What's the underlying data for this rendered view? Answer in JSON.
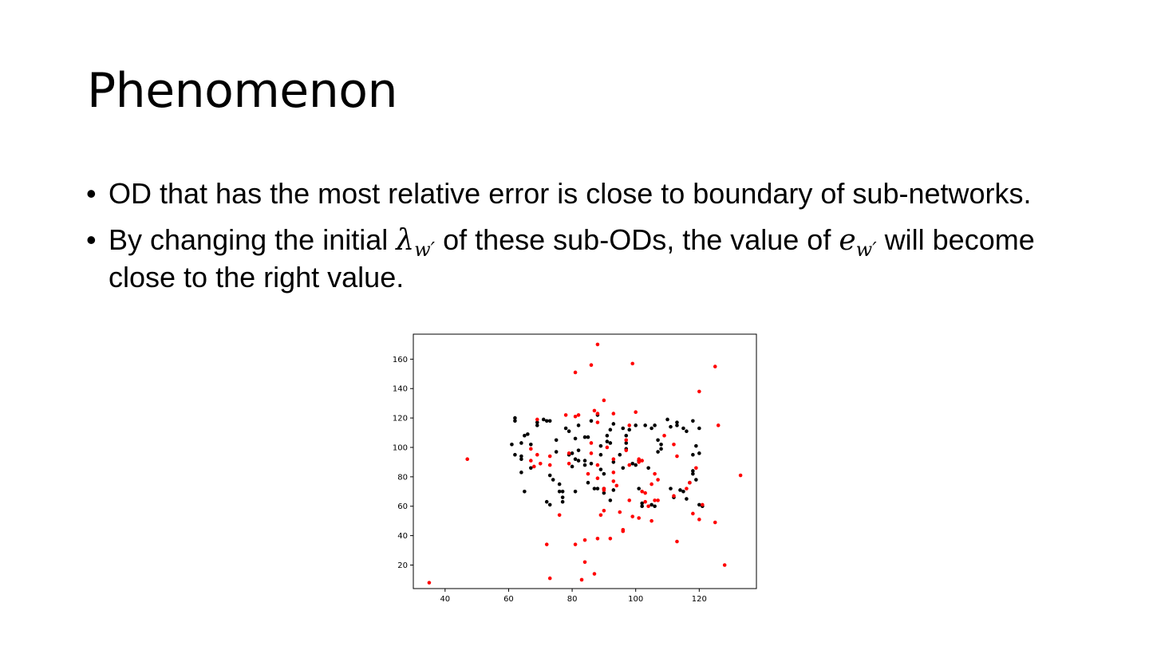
{
  "slide": {
    "title": "Phenomenon",
    "bullet_marker": "•",
    "bullets": [
      {
        "text": "OD that has the most relative error is close to boundary of sub-networks."
      },
      {
        "pre": "By changing the initial ",
        "math1_base": "λ",
        "math1_sub": "w′",
        "mid": " of these sub-ODs, the value of ",
        "math2_base": "e",
        "math2_sub": "w′",
        "post": " will become close to the right value."
      }
    ]
  },
  "chart_data": {
    "type": "scatter",
    "title": "",
    "xlabel": "",
    "ylabel": "",
    "xlim": [
      30,
      138
    ],
    "ylim": [
      4,
      177
    ],
    "xticks": [
      40,
      60,
      80,
      100,
      120
    ],
    "yticks": [
      20,
      40,
      60,
      80,
      100,
      120,
      140,
      160
    ],
    "grid": false,
    "colors": {
      "black": "#000000",
      "red": "#ff0000"
    },
    "series": [
      {
        "color": "#000000",
        "points": [
          [
            61,
            102
          ],
          [
            62,
            95
          ],
          [
            62,
            118
          ],
          [
            62,
            120
          ],
          [
            64,
            103
          ],
          [
            64,
            94
          ],
          [
            64,
            92
          ],
          [
            64,
            83
          ],
          [
            65,
            70
          ],
          [
            65,
            108
          ],
          [
            66,
            109
          ],
          [
            67,
            102
          ],
          [
            67,
            86
          ],
          [
            69,
            117
          ],
          [
            69,
            115
          ],
          [
            71,
            119
          ],
          [
            72,
            118
          ],
          [
            73,
            118
          ],
          [
            72,
            63
          ],
          [
            73,
            61
          ],
          [
            73,
            81
          ],
          [
            74,
            78
          ],
          [
            75,
            105
          ],
          [
            75,
            97
          ],
          [
            76,
            70
          ],
          [
            76,
            75
          ],
          [
            77,
            70
          ],
          [
            77,
            63
          ],
          [
            77,
            66
          ],
          [
            78,
            113
          ],
          [
            79,
            111
          ],
          [
            79,
            95
          ],
          [
            80,
            96
          ],
          [
            80,
            87
          ],
          [
            81,
            106
          ],
          [
            81,
            92
          ],
          [
            81,
            70
          ],
          [
            82,
            91
          ],
          [
            82,
            98
          ],
          [
            82,
            115
          ],
          [
            84,
            91
          ],
          [
            84,
            88
          ],
          [
            84,
            107
          ],
          [
            85,
            107
          ],
          [
            85,
            76
          ],
          [
            86,
            118
          ],
          [
            86,
            89
          ],
          [
            87,
            72
          ],
          [
            88,
            72
          ],
          [
            88,
            122
          ],
          [
            89,
            101
          ],
          [
            89,
            95
          ],
          [
            89,
            85
          ],
          [
            90,
            82
          ],
          [
            90,
            72
          ],
          [
            90,
            69
          ],
          [
            91,
            108
          ],
          [
            91,
            104
          ],
          [
            92,
            112
          ],
          [
            92,
            103
          ],
          [
            92,
            64
          ],
          [
            93,
            71
          ],
          [
            93,
            116
          ],
          [
            93,
            90
          ],
          [
            95,
            95
          ],
          [
            96,
            113
          ],
          [
            96,
            86
          ],
          [
            97,
            108
          ],
          [
            97,
            103
          ],
          [
            97,
            99
          ],
          [
            98,
            112
          ],
          [
            99,
            89
          ],
          [
            100,
            115
          ],
          [
            100,
            88
          ],
          [
            101,
            72
          ],
          [
            101,
            91
          ],
          [
            102,
            62
          ],
          [
            102,
            60
          ],
          [
            103,
            115
          ],
          [
            104,
            86
          ],
          [
            105,
            113
          ],
          [
            105,
            61
          ],
          [
            106,
            115
          ],
          [
            106,
            60
          ],
          [
            107,
            105
          ],
          [
            107,
            97
          ],
          [
            108,
            99
          ],
          [
            108,
            102
          ],
          [
            110,
            119
          ],
          [
            111,
            114
          ],
          [
            111,
            72
          ],
          [
            112,
            66
          ],
          [
            113,
            117
          ],
          [
            113,
            115
          ],
          [
            114,
            71
          ],
          [
            115,
            113
          ],
          [
            115,
            70
          ],
          [
            116,
            111
          ],
          [
            116,
            65
          ],
          [
            117,
            76
          ],
          [
            118,
            118
          ],
          [
            118,
            95
          ],
          [
            118,
            84
          ],
          [
            118,
            82
          ],
          [
            119,
            101
          ],
          [
            119,
            78
          ],
          [
            120,
            96
          ],
          [
            120,
            113
          ],
          [
            120,
            61
          ],
          [
            121,
            60
          ]
        ]
      },
      {
        "color": "#ff0000",
        "points": [
          [
            35,
            8
          ],
          [
            47,
            92
          ],
          [
            67,
            99
          ],
          [
            67,
            91
          ],
          [
            68,
            87
          ],
          [
            69,
            119
          ],
          [
            69,
            95
          ],
          [
            70,
            89
          ],
          [
            72,
            34
          ],
          [
            73,
            11
          ],
          [
            73,
            94
          ],
          [
            73,
            88
          ],
          [
            76,
            54
          ],
          [
            78,
            122
          ],
          [
            79,
            96
          ],
          [
            79,
            89
          ],
          [
            81,
            34
          ],
          [
            81,
            151
          ],
          [
            81,
            121
          ],
          [
            82,
            122
          ],
          [
            83,
            10
          ],
          [
            84,
            37
          ],
          [
            84,
            22
          ],
          [
            85,
            82
          ],
          [
            86,
            156
          ],
          [
            86,
            103
          ],
          [
            86,
            96
          ],
          [
            87,
            14
          ],
          [
            87,
            125
          ],
          [
            88,
            170
          ],
          [
            88,
            123
          ],
          [
            88,
            117
          ],
          [
            88,
            88
          ],
          [
            88,
            79
          ],
          [
            88,
            38
          ],
          [
            89,
            54
          ],
          [
            90,
            57
          ],
          [
            90,
            72
          ],
          [
            90,
            71
          ],
          [
            90,
            132
          ],
          [
            91,
            100
          ],
          [
            92,
            38
          ],
          [
            93,
            123
          ],
          [
            93,
            92
          ],
          [
            93,
            83
          ],
          [
            93,
            77
          ],
          [
            94,
            74
          ],
          [
            95,
            56
          ],
          [
            96,
            43
          ],
          [
            96,
            44
          ],
          [
            97,
            105
          ],
          [
            97,
            98
          ],
          [
            98,
            88
          ],
          [
            98,
            64
          ],
          [
            98,
            115
          ],
          [
            99,
            53
          ],
          [
            99,
            157
          ],
          [
            100,
            124
          ],
          [
            101,
            52
          ],
          [
            101,
            90
          ],
          [
            101,
            92
          ],
          [
            102,
            70
          ],
          [
            102,
            91
          ],
          [
            103,
            63
          ],
          [
            103,
            69
          ],
          [
            104,
            60
          ],
          [
            105,
            50
          ],
          [
            105,
            75
          ],
          [
            106,
            64
          ],
          [
            106,
            82
          ],
          [
            107,
            64
          ],
          [
            107,
            78
          ],
          [
            109,
            108
          ],
          [
            112,
            67
          ],
          [
            112,
            102
          ],
          [
            113,
            94
          ],
          [
            113,
            36
          ],
          [
            116,
            72
          ],
          [
            117,
            76
          ],
          [
            118,
            55
          ],
          [
            119,
            86
          ],
          [
            120,
            138
          ],
          [
            120,
            51
          ],
          [
            121,
            61
          ],
          [
            125,
            155
          ],
          [
            125,
            49
          ],
          [
            126,
            115
          ],
          [
            128,
            20
          ],
          [
            133,
            81
          ]
        ]
      }
    ]
  }
}
